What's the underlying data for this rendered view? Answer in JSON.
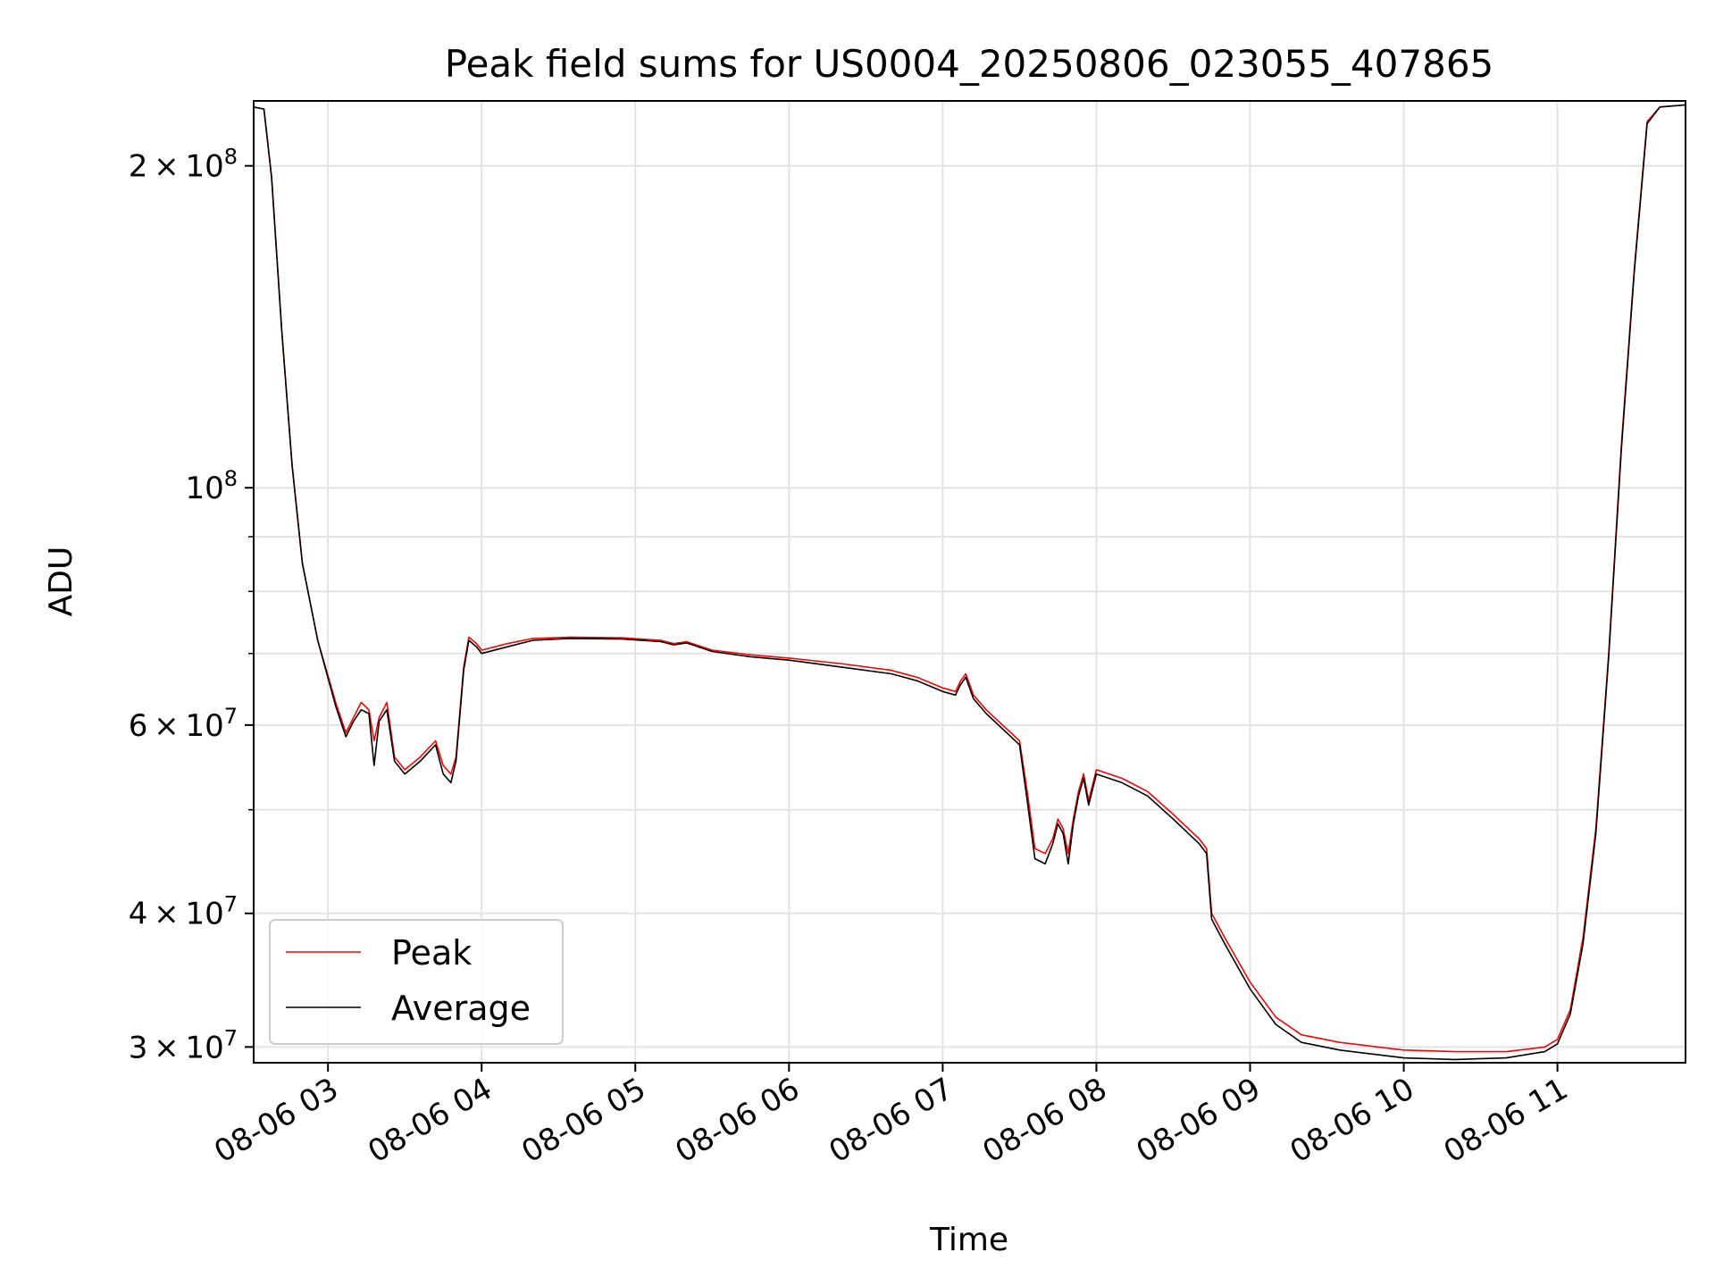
{
  "chart_data": {
    "type": "line",
    "title": "Peak field sums for US0004_20250806_023055_407865",
    "xlabel": "Time",
    "ylabel": "ADU",
    "yscale": "log",
    "grid": true,
    "legend": "lower-left",
    "xlim": [
      "2025-08-06 02:31",
      "2025-08-06 11:50"
    ],
    "ylim": [
      29000000,
      230000000
    ],
    "x_ticks": [
      "08-06 03",
      "08-06 04",
      "08-06 05",
      "08-06 06",
      "08-06 07",
      "08-06 08",
      "08-06 09",
      "08-06 10",
      "08-06 11"
    ],
    "y_ticks": [
      {
        "value": 30000000,
        "mant": "3",
        "exp": "7"
      },
      {
        "value": 40000000,
        "mant": "4",
        "exp": "7"
      },
      {
        "value": 60000000,
        "mant": "6",
        "exp": "7"
      },
      {
        "value": 100000000,
        "mant": "",
        "exp": "8"
      },
      {
        "value": 200000000,
        "mant": "2",
        "exp": "8"
      }
    ],
    "y_minor_ticks": [
      50000000,
      70000000,
      80000000,
      90000000
    ],
    "series": [
      {
        "name": "Peak",
        "color": "#ff0000",
        "points": [
          [
            "2025-08-06 02:31",
            227000000
          ],
          [
            "2025-08-06 02:35",
            226000000
          ],
          [
            "2025-08-06 02:38",
            195000000
          ],
          [
            "2025-08-06 02:42",
            140000000
          ],
          [
            "2025-08-06 02:46",
            105000000
          ],
          [
            "2025-08-06 02:50",
            85000000
          ],
          [
            "2025-08-06 02:56",
            72000000
          ],
          [
            "2025-08-06 03:03",
            63000000
          ],
          [
            "2025-08-06 03:07",
            59000000
          ],
          [
            "2025-08-06 03:10",
            61000000
          ],
          [
            "2025-08-06 03:13",
            63000000
          ],
          [
            "2025-08-06 03:16",
            62000000
          ],
          [
            "2025-08-06 03:18",
            58000000
          ],
          [
            "2025-08-06 03:20",
            61000000
          ],
          [
            "2025-08-06 03:23",
            63000000
          ],
          [
            "2025-08-06 03:26",
            56000000
          ],
          [
            "2025-08-06 03:30",
            54500000
          ],
          [
            "2025-08-06 03:36",
            56000000
          ],
          [
            "2025-08-06 03:42",
            58000000
          ],
          [
            "2025-08-06 03:45",
            55000000
          ],
          [
            "2025-08-06 03:48",
            54000000
          ],
          [
            "2025-08-06 03:50",
            56000000
          ],
          [
            "2025-08-06 03:53",
            68000000
          ],
          [
            "2025-08-06 03:55",
            72500000
          ],
          [
            "2025-08-06 03:58",
            71500000
          ],
          [
            "2025-08-06 04:00",
            70500000
          ],
          [
            "2025-08-06 04:10",
            71500000
          ],
          [
            "2025-08-06 04:20",
            72300000
          ],
          [
            "2025-08-06 04:35",
            72500000
          ],
          [
            "2025-08-06 04:55",
            72400000
          ],
          [
            "2025-08-06 05:10",
            72000000
          ],
          [
            "2025-08-06 05:15",
            71500000
          ],
          [
            "2025-08-06 05:20",
            71800000
          ],
          [
            "2025-08-06 05:30",
            70500000
          ],
          [
            "2025-08-06 05:45",
            69800000
          ],
          [
            "2025-08-06 06:00",
            69300000
          ],
          [
            "2025-08-06 06:20",
            68500000
          ],
          [
            "2025-08-06 06:40",
            67500000
          ],
          [
            "2025-08-06 06:50",
            66500000
          ],
          [
            "2025-08-06 07:00",
            65000000
          ],
          [
            "2025-08-06 07:05",
            64500000
          ],
          [
            "2025-08-06 07:07",
            66000000
          ],
          [
            "2025-08-06 07:09",
            67000000
          ],
          [
            "2025-08-06 07:12",
            64000000
          ],
          [
            "2025-08-06 07:17",
            62000000
          ],
          [
            "2025-08-06 07:25",
            59500000
          ],
          [
            "2025-08-06 07:30",
            58000000
          ],
          [
            "2025-08-06 07:33",
            52000000
          ],
          [
            "2025-08-06 07:36",
            46000000
          ],
          [
            "2025-08-06 07:40",
            45500000
          ],
          [
            "2025-08-06 07:43",
            47000000
          ],
          [
            "2025-08-06 07:45",
            49000000
          ],
          [
            "2025-08-06 07:47",
            48000000
          ],
          [
            "2025-08-06 07:49",
            45500000
          ],
          [
            "2025-08-06 07:51",
            49000000
          ],
          [
            "2025-08-06 07:53",
            52000000
          ],
          [
            "2025-08-06 07:55",
            54000000
          ],
          [
            "2025-08-06 07:57",
            51000000
          ],
          [
            "2025-08-06 08:00",
            54500000
          ],
          [
            "2025-08-06 08:10",
            53500000
          ],
          [
            "2025-08-06 08:20",
            52000000
          ],
          [
            "2025-08-06 08:30",
            49500000
          ],
          [
            "2025-08-06 08:40",
            47000000
          ],
          [
            "2025-08-06 08:43",
            46000000
          ],
          [
            "2025-08-06 08:45",
            40000000
          ],
          [
            "2025-08-06 08:50",
            38000000
          ],
          [
            "2025-08-06 09:00",
            34500000
          ],
          [
            "2025-08-06 09:10",
            32000000
          ],
          [
            "2025-08-06 09:20",
            30800000
          ],
          [
            "2025-08-06 09:35",
            30300000
          ],
          [
            "2025-08-06 09:50",
            30000000
          ],
          [
            "2025-08-06 10:00",
            29800000
          ],
          [
            "2025-08-06 10:20",
            29700000
          ],
          [
            "2025-08-06 10:40",
            29700000
          ],
          [
            "2025-08-06 10:55",
            30000000
          ],
          [
            "2025-08-06 11:00",
            30500000
          ],
          [
            "2025-08-06 11:05",
            32500000
          ],
          [
            "2025-08-06 11:10",
            38000000
          ],
          [
            "2025-08-06 11:15",
            48000000
          ],
          [
            "2025-08-06 11:20",
            70000000
          ],
          [
            "2025-08-06 11:25",
            110000000
          ],
          [
            "2025-08-06 11:30",
            160000000
          ],
          [
            "2025-08-06 11:35",
            220000000
          ],
          [
            "2025-08-06 11:40",
            227000000
          ],
          [
            "2025-08-06 11:50",
            228000000
          ]
        ]
      },
      {
        "name": "Average",
        "color": "#000000",
        "points": [
          [
            "2025-08-06 02:31",
            227000000
          ],
          [
            "2025-08-06 02:35",
            226000000
          ],
          [
            "2025-08-06 02:38",
            195000000
          ],
          [
            "2025-08-06 02:42",
            140000000
          ],
          [
            "2025-08-06 02:46",
            105000000
          ],
          [
            "2025-08-06 02:50",
            85000000
          ],
          [
            "2025-08-06 02:56",
            72000000
          ],
          [
            "2025-08-06 03:03",
            62500000
          ],
          [
            "2025-08-06 03:07",
            58500000
          ],
          [
            "2025-08-06 03:10",
            60500000
          ],
          [
            "2025-08-06 03:13",
            62000000
          ],
          [
            "2025-08-06 03:16",
            61500000
          ],
          [
            "2025-08-06 03:18",
            55000000
          ],
          [
            "2025-08-06 03:20",
            60500000
          ],
          [
            "2025-08-06 03:23",
            62000000
          ],
          [
            "2025-08-06 03:26",
            55500000
          ],
          [
            "2025-08-06 03:30",
            54000000
          ],
          [
            "2025-08-06 03:36",
            55500000
          ],
          [
            "2025-08-06 03:42",
            57500000
          ],
          [
            "2025-08-06 03:45",
            54000000
          ],
          [
            "2025-08-06 03:48",
            53000000
          ],
          [
            "2025-08-06 03:50",
            55500000
          ],
          [
            "2025-08-06 03:53",
            67500000
          ],
          [
            "2025-08-06 03:55",
            72000000
          ],
          [
            "2025-08-06 03:58",
            71000000
          ],
          [
            "2025-08-06 04:00",
            70000000
          ],
          [
            "2025-08-06 04:10",
            71000000
          ],
          [
            "2025-08-06 04:20",
            72000000
          ],
          [
            "2025-08-06 04:35",
            72300000
          ],
          [
            "2025-08-06 04:55",
            72200000
          ],
          [
            "2025-08-06 05:10",
            71800000
          ],
          [
            "2025-08-06 05:15",
            71300000
          ],
          [
            "2025-08-06 05:20",
            71600000
          ],
          [
            "2025-08-06 05:30",
            70300000
          ],
          [
            "2025-08-06 05:45",
            69500000
          ],
          [
            "2025-08-06 06:00",
            69000000
          ],
          [
            "2025-08-06 06:20",
            68000000
          ],
          [
            "2025-08-06 06:40",
            67000000
          ],
          [
            "2025-08-06 06:50",
            66000000
          ],
          [
            "2025-08-06 07:00",
            64500000
          ],
          [
            "2025-08-06 07:05",
            64000000
          ],
          [
            "2025-08-06 07:07",
            65500000
          ],
          [
            "2025-08-06 07:09",
            66500000
          ],
          [
            "2025-08-06 07:12",
            63500000
          ],
          [
            "2025-08-06 07:17",
            61500000
          ],
          [
            "2025-08-06 07:25",
            59000000
          ],
          [
            "2025-08-06 07:30",
            57500000
          ],
          [
            "2025-08-06 07:33",
            51000000
          ],
          [
            "2025-08-06 07:36",
            45000000
          ],
          [
            "2025-08-06 07:40",
            44500000
          ],
          [
            "2025-08-06 07:43",
            46500000
          ],
          [
            "2025-08-06 07:45",
            48500000
          ],
          [
            "2025-08-06 07:47",
            47500000
          ],
          [
            "2025-08-06 07:49",
            44500000
          ],
          [
            "2025-08-06 07:51",
            48500000
          ],
          [
            "2025-08-06 07:53",
            51500000
          ],
          [
            "2025-08-06 07:55",
            53500000
          ],
          [
            "2025-08-06 07:57",
            50500000
          ],
          [
            "2025-08-06 08:00",
            54000000
          ],
          [
            "2025-08-06 08:10",
            53000000
          ],
          [
            "2025-08-06 08:20",
            51500000
          ],
          [
            "2025-08-06 08:30",
            49000000
          ],
          [
            "2025-08-06 08:40",
            46500000
          ],
          [
            "2025-08-06 08:43",
            45500000
          ],
          [
            "2025-08-06 08:45",
            39500000
          ],
          [
            "2025-08-06 08:50",
            37500000
          ],
          [
            "2025-08-06 09:00",
            34000000
          ],
          [
            "2025-08-06 09:10",
            31500000
          ],
          [
            "2025-08-06 09:20",
            30300000
          ],
          [
            "2025-08-06 09:35",
            29800000
          ],
          [
            "2025-08-06 09:50",
            29500000
          ],
          [
            "2025-08-06 10:00",
            29300000
          ],
          [
            "2025-08-06 10:20",
            29200000
          ],
          [
            "2025-08-06 10:40",
            29300000
          ],
          [
            "2025-08-06 10:55",
            29700000
          ],
          [
            "2025-08-06 11:00",
            30200000
          ],
          [
            "2025-08-06 11:05",
            32200000
          ],
          [
            "2025-08-06 11:10",
            37500000
          ],
          [
            "2025-08-06 11:15",
            47500000
          ],
          [
            "2025-08-06 11:20",
            69500000
          ],
          [
            "2025-08-06 11:25",
            109000000
          ],
          [
            "2025-08-06 11:30",
            159000000
          ],
          [
            "2025-08-06 11:35",
            219000000
          ],
          [
            "2025-08-06 11:40",
            227000000
          ],
          [
            "2025-08-06 11:50",
            228000000
          ]
        ]
      }
    ]
  }
}
